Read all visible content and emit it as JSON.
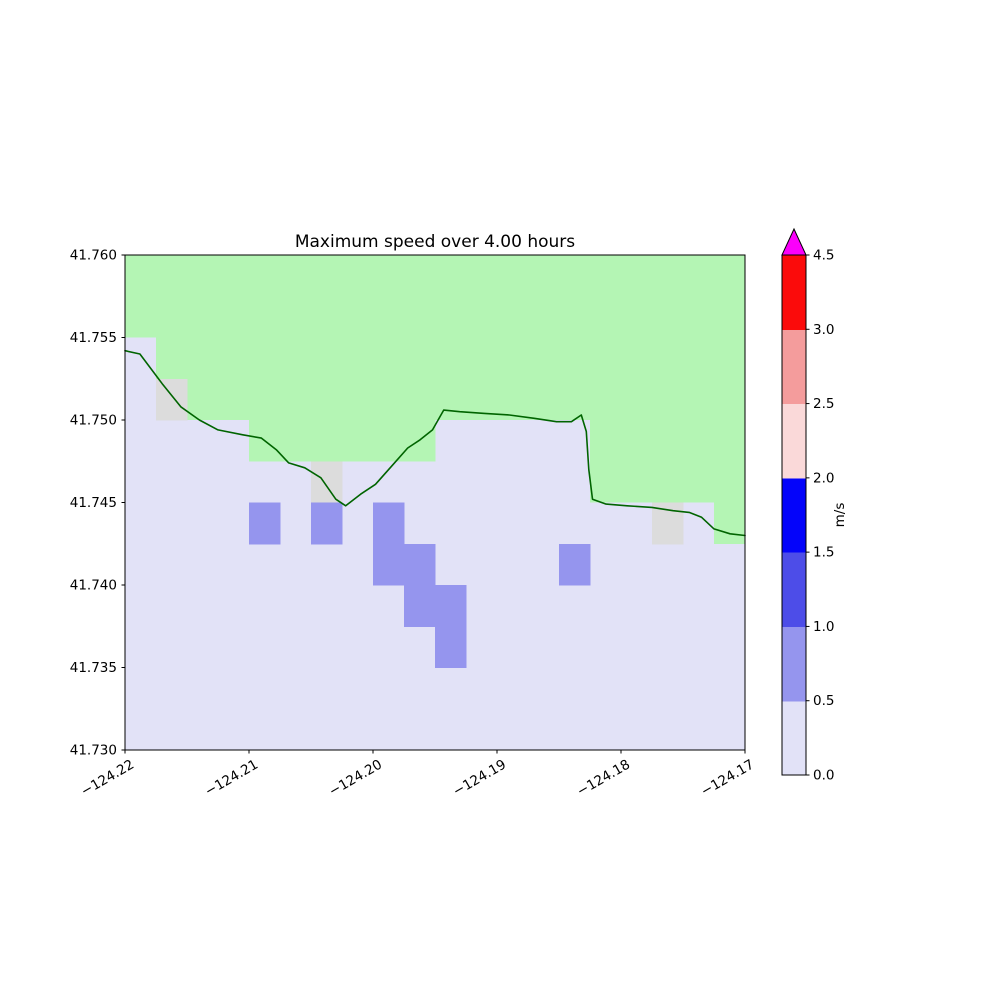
{
  "chart_data": {
    "type": "heatmap",
    "title": "Maximum speed over 4.00 hours",
    "x_axis": {
      "label": "",
      "range": [
        -124.22,
        -124.17
      ],
      "tick_values": [
        -124.22,
        -124.21,
        -124.2,
        -124.19,
        -124.18,
        -124.17
      ],
      "tick_labels": [
        "−124.22",
        "−124.21",
        "−124.20",
        "−124.19",
        "−124.18",
        "−124.17"
      ],
      "tick_rotation_deg": 30
    },
    "y_axis": {
      "label": "",
      "range": [
        41.73,
        41.76
      ],
      "tick_values": [
        41.76,
        41.755,
        41.75,
        41.745,
        41.74,
        41.735,
        41.73
      ],
      "tick_labels": [
        "41.760",
        "41.755",
        "41.750",
        "41.745",
        "41.740",
        "41.735",
        "41.730"
      ]
    },
    "colorbar": {
      "label": "m/s",
      "boundaries": [
        0.0,
        0.5,
        1.0,
        1.5,
        2.0,
        2.5,
        3.0,
        4.5
      ],
      "tick_labels": [
        "0.0",
        "0.5",
        "1.0",
        "1.5",
        "2.0",
        "2.5",
        "3.0",
        "4.5"
      ],
      "segment_colors": [
        "#e2e2f7",
        "#9595ee",
        "#4d4de8",
        "#0404fa",
        "#fad9d9",
        "#f49c9c",
        "#fb0b0b"
      ],
      "over_color": "#fb00fb",
      "extend": "max"
    },
    "grid": {
      "dlon": 0.0025,
      "dlat": 0.0025
    },
    "colors": {
      "land": "#b4f5b4",
      "water": "#e2e2f7",
      "coast_cell": "#dcdcdc",
      "mid_speed": "#9595ee",
      "coastline": "#006400"
    },
    "land_bottom_lat_by_column": [
      41.755,
      41.7525,
      41.75,
      41.75,
      41.7475,
      41.7475,
      41.7475,
      41.7475,
      41.7475,
      41.7475,
      41.75,
      41.75,
      41.75,
      41.75,
      41.75,
      41.745,
      41.745,
      41.745,
      41.745,
      41.7425
    ],
    "coast_cells": [
      [
        -124.2175,
        41.75
      ],
      [
        -124.205,
        41.745
      ],
      [
        -124.1775,
        41.7425
      ]
    ],
    "speed_cells_05_10": [
      [
        -124.21,
        41.7425
      ],
      [
        -124.205,
        41.7425
      ],
      [
        -124.2,
        41.7425
      ],
      [
        -124.2,
        41.74
      ],
      [
        -124.1975,
        41.74
      ],
      [
        -124.1975,
        41.7375
      ],
      [
        -124.195,
        41.7375
      ],
      [
        -124.195,
        41.735
      ],
      [
        -124.185,
        41.74
      ]
    ],
    "coastline": [
      [
        -124.22,
        41.7542
      ],
      [
        -124.2188,
        41.754
      ],
      [
        -124.217,
        41.7522
      ],
      [
        -124.2155,
        41.7508
      ],
      [
        -124.214,
        41.75
      ],
      [
        -124.2125,
        41.7494
      ],
      [
        -124.2105,
        41.7491
      ],
      [
        -124.209,
        41.7489
      ],
      [
        -124.2078,
        41.7482
      ],
      [
        -124.2068,
        41.7474
      ],
      [
        -124.2055,
        41.7471
      ],
      [
        -124.2042,
        41.7465
      ],
      [
        -124.203,
        41.7452
      ],
      [
        -124.2022,
        41.7448
      ],
      [
        -124.201,
        41.7455
      ],
      [
        -124.1998,
        41.7461
      ],
      [
        -124.1985,
        41.7472
      ],
      [
        -124.1972,
        41.7483
      ],
      [
        -124.1962,
        41.7488
      ],
      [
        -124.1952,
        41.7494
      ],
      [
        -124.1943,
        41.7506
      ],
      [
        -124.193,
        41.7505
      ],
      [
        -124.191,
        41.7504
      ],
      [
        -124.189,
        41.7503
      ],
      [
        -124.187,
        41.7501
      ],
      [
        -124.1852,
        41.7499
      ],
      [
        -124.184,
        41.7499
      ],
      [
        -124.1832,
        41.7503
      ],
      [
        -124.1828,
        41.7493
      ],
      [
        -124.1826,
        41.747
      ],
      [
        -124.1823,
        41.7452
      ],
      [
        -124.1812,
        41.7449
      ],
      [
        -124.1795,
        41.7448
      ],
      [
        -124.1775,
        41.7447
      ],
      [
        -124.1758,
        41.7445
      ],
      [
        -124.1745,
        41.7444
      ],
      [
        -124.1735,
        41.7441
      ],
      [
        -124.1725,
        41.7434
      ],
      [
        -124.1712,
        41.7431
      ],
      [
        -124.17,
        41.743
      ]
    ]
  }
}
